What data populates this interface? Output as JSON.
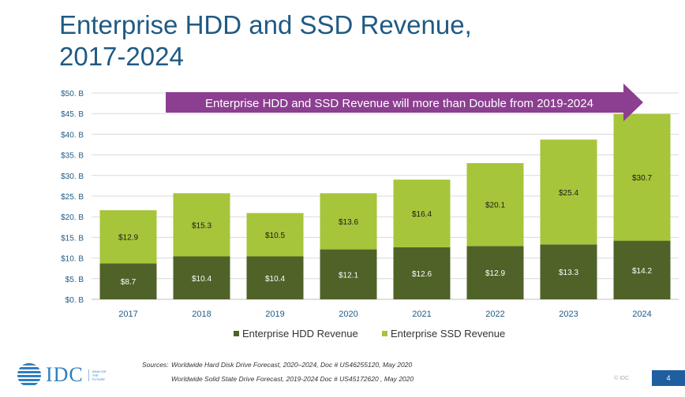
{
  "slide": {
    "title_line1": "Enterprise HDD and SSD Revenue,",
    "title_line2": "2017-2024",
    "callout": "Enterprise HDD and SSD Revenue will more than Double from 2019-2024",
    "sources_label": "Sources:",
    "source_1": "Worldwide Hard Disk Drive Forecast, 2020–2024, Doc # US46255120, May 2020",
    "source_2": "Worldwide Solid State Drive Forecast, 2019-2024 Doc # US45172620 , May 2020",
    "logo_text": "IDC",
    "logo_tagline": [
      "ANALYZE",
      "THE",
      "FUTURE"
    ],
    "copyright": "© IDC",
    "page_number": "4"
  },
  "colors": {
    "hdd": "#4f6228",
    "ssd": "#a6c53a",
    "callout": "#8c3f90",
    "axis_text": "#1f5a84",
    "title": "#1f5a84"
  },
  "chart_data": {
    "type": "bar",
    "stacked": true,
    "title": "Enterprise HDD and SSD Revenue, 2017-2024",
    "categories": [
      "2017",
      "2018",
      "2019",
      "2020",
      "2021",
      "2022",
      "2023",
      "2024"
    ],
    "series": [
      {
        "name": "Enterprise HDD Revenue",
        "values": [
          8.7,
          10.4,
          10.4,
          12.1,
          12.6,
          12.9,
          13.3,
          14.2
        ],
        "labels": [
          "$8.7",
          "$10.4",
          "$10.4",
          "$12.1",
          "$12.6",
          "$12.9",
          "$13.3",
          "$14.2"
        ]
      },
      {
        "name": "Enterprise SSD Revenue",
        "values": [
          12.9,
          15.3,
          10.5,
          13.6,
          16.4,
          20.1,
          25.4,
          30.7
        ],
        "labels": [
          "$12.9",
          "$15.3",
          "$10.5",
          "$13.6",
          "$16.4",
          "$20.1",
          "$25.4",
          "$30.7"
        ]
      }
    ],
    "ylim": [
      0,
      50
    ],
    "yticks": [
      0,
      5,
      10,
      15,
      20,
      25,
      30,
      35,
      40,
      45,
      50
    ],
    "ytick_labels": [
      "$0. B",
      "$5. B",
      "$10. B",
      "$15. B",
      "$20. B",
      "$25. B",
      "$30. B",
      "$35. B",
      "$40. B",
      "$45. B",
      "$50. B"
    ],
    "grid": true,
    "legend_position": "bottom"
  }
}
